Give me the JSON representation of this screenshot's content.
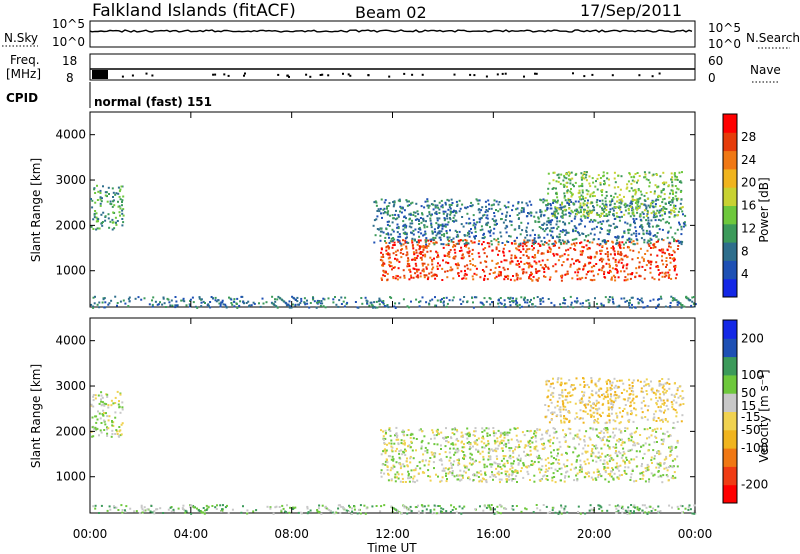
{
  "header": {
    "station": "Falkland Islands (fitACF)",
    "beam": "Beam 02",
    "date": "17/Sep/2011"
  },
  "status_panel": {
    "nsky_label": "N.Sky",
    "nsearch_label": "N.Search",
    "nsky_ticks": [
      "10^5",
      "10^0"
    ],
    "nsearch_ticks": [
      "10^5",
      "10^0"
    ],
    "freq_label": "Freq.",
    "freq_unit": "[MHz]",
    "freq_ticks": [
      "18",
      "8"
    ],
    "nave_label": "Nave",
    "nave_ticks": [
      "60",
      "0"
    ],
    "cpid_label": "CPID",
    "cpid_value": "normal (fast) 151"
  },
  "colors": {
    "power": [
      "#1428e6",
      "#1e50b4",
      "#2e6e8c",
      "#3c9a5a",
      "#6ec83c",
      "#c8d232",
      "#f0b41e",
      "#f07814",
      "#e63c0a",
      "#ff0000"
    ],
    "velocity": [
      "#ff0000",
      "#f03c14",
      "#f07814",
      "#f0b41e",
      "#f0d250",
      "#c8c8c8",
      "#6ec83c",
      "#3c9a5a",
      "#1e50b4",
      "#1428e6"
    ]
  },
  "chart_data": [
    {
      "type": "heatmap",
      "name": "power-panel",
      "ylabel": "Slant Range [km]",
      "yticks": [
        "1000",
        "2000",
        "3000",
        "4000"
      ],
      "ylim": [
        200,
        4500
      ],
      "xlim": [
        0,
        24
      ],
      "colorbar_label": "Power [dB]",
      "colorbar_ticks": [
        "4",
        "8",
        "12",
        "16",
        "20",
        "24",
        "28"
      ],
      "colorbar_range": [
        0,
        32
      ],
      "bands": [
        {
          "name": "ionospheric-echo-band",
          "x": [
            11.5,
            23.3
          ],
          "y": [
            800,
            1700
          ],
          "color_index": 8
        },
        {
          "name": "ionospheric-weak-halo",
          "x": [
            11.2,
            23.6
          ],
          "y": [
            1600,
            2600
          ],
          "color_index": 2
        },
        {
          "name": "f-region-scatter",
          "x": [
            18.0,
            23.5
          ],
          "y": [
            2200,
            3200
          ],
          "color_index": 4
        },
        {
          "name": "early-morning-scatter",
          "x": [
            0.0,
            1.3
          ],
          "y": [
            1900,
            2900
          ],
          "color_index": 3
        },
        {
          "name": "ground-near-range",
          "x": [
            0.0,
            24.0
          ],
          "y": [
            200,
            450
          ],
          "color_index": 2
        }
      ]
    },
    {
      "type": "heatmap",
      "name": "velocity-panel",
      "ylabel": "Slant Range [km]",
      "yticks": [
        "1000",
        "2000",
        "3000",
        "4000"
      ],
      "ylim": [
        200,
        4500
      ],
      "xlim": [
        0,
        24
      ],
      "xticks": [
        "00:00",
        "04:00",
        "08:00",
        "12:00",
        "16:00",
        "20:00",
        "00:00"
      ],
      "xlabel": "Time UT",
      "colorbar_label": "Velocity [m s⁻¹]",
      "colorbar_ticks": [
        "-200",
        "-100",
        "-50",
        "-15",
        "15",
        "50",
        "100",
        "200"
      ],
      "colorbar_range": [
        -250,
        250
      ],
      "bands": [
        {
          "name": "ground-scatter-band",
          "x": [
            11.5,
            23.3
          ],
          "y": [
            900,
            2100
          ],
          "color_index": 5
        },
        {
          "name": "upper-scatter",
          "x": [
            18.0,
            23.5
          ],
          "y": [
            2200,
            3200
          ],
          "color_index": 4
        },
        {
          "name": "early-morning-scatter",
          "x": [
            0.0,
            1.3
          ],
          "y": [
            1900,
            2900
          ],
          "color_index": 5
        },
        {
          "name": "near-range-scatter",
          "x": [
            0.0,
            24.0
          ],
          "y": [
            200,
            400
          ],
          "color_index": 6
        }
      ]
    }
  ]
}
